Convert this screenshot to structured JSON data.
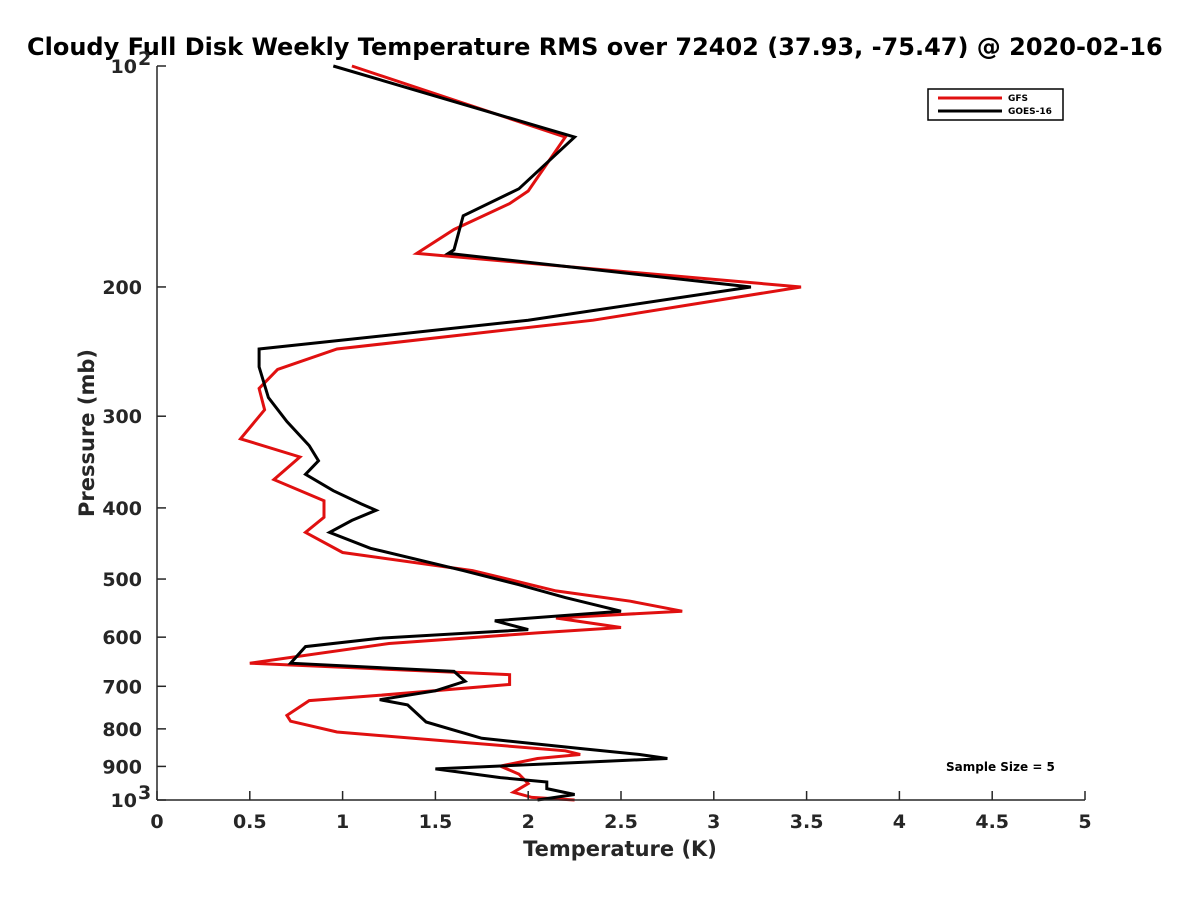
{
  "chart_data": {
    "type": "line",
    "title": "Cloudy Full Disk Weekly Temperature RMS over 72402 (37.93, -75.47) @ 2020-02-16",
    "xlabel": "Temperature (K)",
    "ylabel": "Pressure (mb)",
    "xlim": [
      0,
      5
    ],
    "ylim": [
      100,
      1000
    ],
    "y_scale": "log",
    "y_reversed": true,
    "grid": false,
    "legend_position": "top-right",
    "x_ticks": [
      "0",
      "0.5",
      "1",
      "1.5",
      "2",
      "2.5",
      "3",
      "3.5",
      "4",
      "4.5",
      "5"
    ],
    "y_ticks": [
      {
        "value": 100,
        "label": "10",
        "exp": "2"
      },
      {
        "value": 200,
        "label": "200"
      },
      {
        "value": 300,
        "label": "300"
      },
      {
        "value": 400,
        "label": "400"
      },
      {
        "value": 500,
        "label": "500"
      },
      {
        "value": 600,
        "label": "600"
      },
      {
        "value": 700,
        "label": "700"
      },
      {
        "value": 800,
        "label": "800"
      },
      {
        "value": 900,
        "label": "900"
      },
      {
        "value": 1000,
        "label": "10",
        "exp": "3"
      }
    ],
    "annotation": "Sample Size = 5",
    "series": [
      {
        "name": "GFS",
        "color": "#e01010",
        "points": [
          [
            1.05,
            100
          ],
          [
            2.2,
            125
          ],
          [
            2.0,
            148
          ],
          [
            1.9,
            154
          ],
          [
            1.6,
            167
          ],
          [
            1.4,
            180
          ],
          [
            3.47,
            200
          ],
          [
            2.35,
            222
          ],
          [
            0.97,
            243
          ],
          [
            0.65,
            259
          ],
          [
            0.55,
            275
          ],
          [
            0.58,
            294
          ],
          [
            0.45,
            322
          ],
          [
            0.77,
            341
          ],
          [
            0.63,
            366
          ],
          [
            0.9,
            391
          ],
          [
            0.9,
            412
          ],
          [
            0.8,
            432
          ],
          [
            1.0,
            460
          ],
          [
            1.7,
            487
          ],
          [
            2.15,
            519
          ],
          [
            2.55,
            536
          ],
          [
            2.83,
            553
          ],
          [
            2.15,
            565
          ],
          [
            2.5,
            582
          ],
          [
            2.05,
            592
          ],
          [
            1.25,
            612
          ],
          [
            0.5,
            651
          ],
          [
            1.9,
            675
          ],
          [
            1.9,
            696
          ],
          [
            1.2,
            720
          ],
          [
            0.82,
            732
          ],
          [
            0.7,
            767
          ],
          [
            0.72,
            781
          ],
          [
            0.97,
            808
          ],
          [
            2.2,
            857
          ],
          [
            2.28,
            867
          ],
          [
            2.05,
            878
          ],
          [
            1.85,
            899
          ],
          [
            1.95,
            922
          ],
          [
            2.0,
            950
          ],
          [
            1.92,
            976
          ],
          [
            2.02,
            992
          ],
          [
            2.25,
            1000
          ]
        ]
      },
      {
        "name": "GOES-16",
        "color": "#000000",
        "points": [
          [
            0.95,
            100
          ],
          [
            2.25,
            125
          ],
          [
            1.95,
            147
          ],
          [
            1.65,
            160
          ],
          [
            1.6,
            178
          ],
          [
            1.57,
            180
          ],
          [
            3.2,
            200
          ],
          [
            2.0,
            222
          ],
          [
            0.55,
            243
          ],
          [
            0.55,
            257
          ],
          [
            0.6,
            283
          ],
          [
            0.7,
            305
          ],
          [
            0.82,
            329
          ],
          [
            0.87,
            345
          ],
          [
            0.8,
            360
          ],
          [
            0.95,
            379
          ],
          [
            1.1,
            395
          ],
          [
            1.18,
            403
          ],
          [
            1.05,
            416
          ],
          [
            0.93,
            432
          ],
          [
            1.15,
            454
          ],
          [
            1.65,
            487
          ],
          [
            1.95,
            509
          ],
          [
            2.2,
            530
          ],
          [
            2.5,
            553
          ],
          [
            1.82,
            570
          ],
          [
            2.0,
            586
          ],
          [
            1.2,
            602
          ],
          [
            0.8,
            618
          ],
          [
            0.72,
            651
          ],
          [
            1.6,
            668
          ],
          [
            1.66,
            689
          ],
          [
            1.5,
            710
          ],
          [
            1.2,
            730
          ],
          [
            1.35,
            742
          ],
          [
            1.45,
            783
          ],
          [
            1.75,
            824
          ],
          [
            2.3,
            852
          ],
          [
            2.6,
            867
          ],
          [
            2.75,
            878
          ],
          [
            1.5,
            907
          ],
          [
            1.85,
            932
          ],
          [
            2.1,
            945
          ],
          [
            2.1,
            965
          ],
          [
            2.25,
            983
          ],
          [
            2.05,
            1000
          ]
        ]
      }
    ]
  }
}
